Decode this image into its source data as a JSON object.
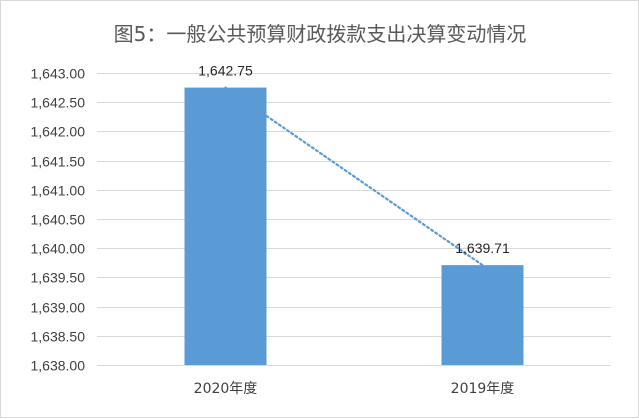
{
  "chart_data": {
    "type": "bar",
    "title": "图5：一般公共预算财政拨款支出决算变动情况",
    "categories": [
      "2020年度",
      "2019年度"
    ],
    "values": [
      1642.75,
      1639.71
    ],
    "data_labels": [
      "1,642.75",
      "1,639.71"
    ],
    "ylim": [
      1638.0,
      1643.0
    ],
    "y_ticks": [
      "1,638.00",
      "1,638.50",
      "1,639.00",
      "1,639.50",
      "1,640.00",
      "1,640.50",
      "1,641.00",
      "1,641.50",
      "1,642.00",
      "1,642.50",
      "1,643.00"
    ],
    "y_tick_values": [
      1638.0,
      1638.5,
      1639.0,
      1639.5,
      1640.0,
      1640.5,
      1641.0,
      1641.5,
      1642.0,
      1642.5,
      1643.0
    ],
    "grid": true,
    "trendline": "linear, dotted",
    "xlabel": "",
    "ylabel": "",
    "colors": {
      "bar": "#5b9bd5",
      "trendline": "#5b9bd5",
      "grid": "#d9d9d9"
    }
  }
}
